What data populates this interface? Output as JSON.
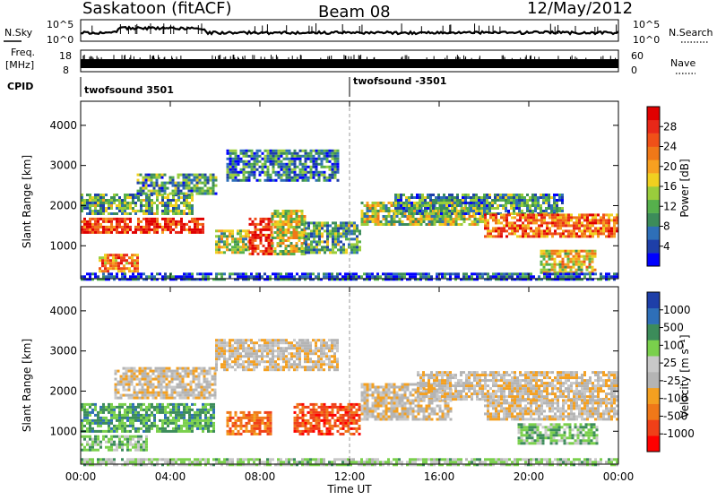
{
  "header": {
    "station": "Saskatoon (fitACF)",
    "beam": "Beam 08",
    "date": "12/May/2012"
  },
  "top_panels": {
    "nsky_label": "N.Sky",
    "nsearch_label": "N.Search",
    "nsky_ticks": [
      "10^5",
      "10^0"
    ],
    "nsearch_ticks": [
      "10^5",
      "10^0"
    ],
    "freq_label_1": "Freq.",
    "freq_label_2": "[MHz]",
    "freq_ticks": [
      "18",
      "8"
    ],
    "nave_label": "Nave",
    "nave_ticks": [
      "60",
      "0"
    ],
    "cpid_label": "CPID",
    "cpid_segments": [
      {
        "label": "twofsound 3501",
        "start_hour": 0
      },
      {
        "label": "twofsound -3501",
        "start_hour": 12
      }
    ]
  },
  "chart_data": [
    {
      "type": "heatmap",
      "name": "power",
      "ylabel": "Slant Range [km]",
      "xlabel": "Time UT",
      "x_ticks": [
        "00:00",
        "04:00",
        "08:00",
        "12:00",
        "16:00",
        "20:00",
        "00:00"
      ],
      "xlim_hours": [
        0,
        24
      ],
      "y_ticks": [
        1000,
        2000,
        3000,
        4000
      ],
      "ylim_km": [
        180,
        4600
      ],
      "colorbar": {
        "label": "Power [dB]",
        "ticks": [
          "28",
          "24",
          "20",
          "16",
          "12",
          "8",
          "4"
        ],
        "colors": [
          "#0000ff",
          "#1e3fa8",
          "#2e6fb8",
          "#3c8c5a",
          "#56b04c",
          "#9acd3c",
          "#f0d020",
          "#f7a020",
          "#f07818",
          "#f05018",
          "#e82818",
          "#e00000"
        ]
      },
      "echo_regions": [
        {
          "t0": 0.0,
          "t1": 5.5,
          "r0": 1300,
          "r1": 1700,
          "level": 0.85
        },
        {
          "t0": 0.0,
          "t1": 5.0,
          "r0": 1800,
          "r1": 2300,
          "level": 0.35
        },
        {
          "t0": 0.8,
          "t1": 2.5,
          "r0": 350,
          "r1": 800,
          "level": 0.7
        },
        {
          "t0": 2.5,
          "t1": 6.0,
          "r0": 2300,
          "r1": 2800,
          "level": 0.3
        },
        {
          "t0": 6.0,
          "t1": 7.5,
          "r0": 800,
          "r1": 1400,
          "level": 0.45
        },
        {
          "t0": 7.5,
          "t1": 8.5,
          "r0": 800,
          "r1": 1700,
          "level": 0.9
        },
        {
          "t0": 8.5,
          "t1": 10.0,
          "r0": 800,
          "r1": 1900,
          "level": 0.5
        },
        {
          "t0": 10.0,
          "t1": 12.5,
          "r0": 800,
          "r1": 1600,
          "level": 0.35
        },
        {
          "t0": 6.5,
          "t1": 11.5,
          "r0": 2600,
          "r1": 3400,
          "level": 0.25
        },
        {
          "t0": 12.5,
          "t1": 18.0,
          "r0": 1500,
          "r1": 2100,
          "level": 0.45
        },
        {
          "t0": 14.0,
          "t1": 21.5,
          "r0": 1800,
          "r1": 2300,
          "level": 0.3
        },
        {
          "t0": 18.0,
          "t1": 24.0,
          "r0": 1200,
          "r1": 1800,
          "level": 0.75
        },
        {
          "t0": 20.5,
          "t1": 23.0,
          "r0": 350,
          "r1": 900,
          "level": 0.55
        },
        {
          "t0": 0.0,
          "t1": 24.0,
          "r0": 180,
          "r1": 330,
          "level": 0.15
        }
      ]
    },
    {
      "type": "heatmap",
      "name": "velocity",
      "ylabel": "Slant Range [km]",
      "xlabel": "Time UT",
      "x_ticks": [
        "00:00",
        "04:00",
        "08:00",
        "12:00",
        "16:00",
        "20:00",
        "00:00"
      ],
      "xlim_hours": [
        0,
        24
      ],
      "y_ticks": [
        1000,
        2000,
        3000,
        4000
      ],
      "ylim_km": [
        180,
        4600
      ],
      "colorbar": {
        "label": "Velocity [m s⁻¹]",
        "ticks": [
          "1000",
          "500",
          "100",
          "25",
          "-25",
          "-100",
          "-500",
          "-1000"
        ],
        "colors": [
          "#ff0000",
          "#f04018",
          "#f07818",
          "#f4a020",
          "#b4b4b4",
          "#c8c8c8",
          "#7ad04c",
          "#3c8c5a",
          "#2e6fb8",
          "#1e3fa8"
        ]
      },
      "echo_regions": [
        {
          "t0": 0.0,
          "t1": 6.0,
          "r0": 1000,
          "r1": 1700,
          "level": 0.72
        },
        {
          "t0": 0.0,
          "t1": 3.0,
          "r0": 500,
          "r1": 900,
          "level": 0.65
        },
        {
          "t0": 1.5,
          "t1": 6.0,
          "r0": 1800,
          "r1": 2600,
          "level": 0.45
        },
        {
          "t0": 6.0,
          "t1": 11.5,
          "r0": 2500,
          "r1": 3300,
          "level": 0.45
        },
        {
          "t0": 6.5,
          "t1": 8.5,
          "r0": 900,
          "r1": 1500,
          "level": 0.25
        },
        {
          "t0": 9.5,
          "t1": 12.5,
          "r0": 900,
          "r1": 1700,
          "level": 0.18
        },
        {
          "t0": 12.5,
          "t1": 16.5,
          "r0": 1300,
          "r1": 2200,
          "level": 0.45
        },
        {
          "t0": 15.0,
          "t1": 24.0,
          "r0": 1800,
          "r1": 2500,
          "level": 0.45
        },
        {
          "t0": 18.0,
          "t1": 24.0,
          "r0": 1300,
          "r1": 1800,
          "level": 0.45
        },
        {
          "t0": 19.5,
          "t1": 23.0,
          "r0": 700,
          "r1": 1200,
          "level": 0.65
        },
        {
          "t0": 0.0,
          "t1": 24.0,
          "r0": 180,
          "r1": 330,
          "level": 0.6
        }
      ]
    }
  ]
}
